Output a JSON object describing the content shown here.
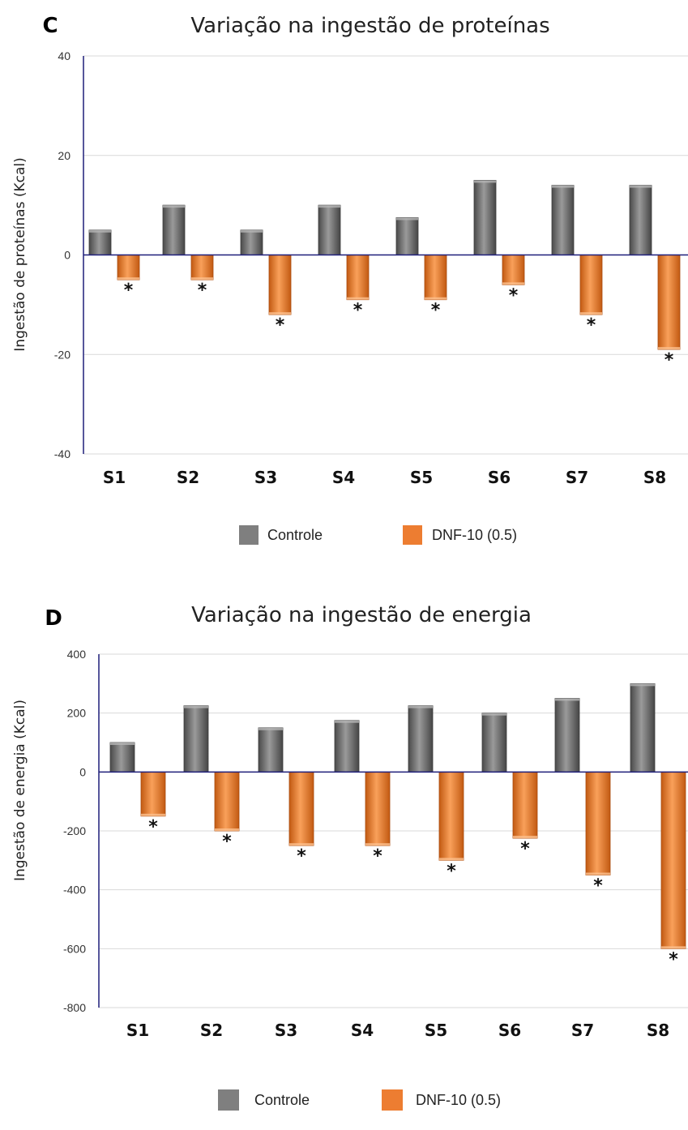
{
  "chart_data": [
    {
      "panel": "C",
      "type": "bar",
      "title": "Variação na ingestão de proteínas",
      "ylabel": "Ingestão de proteínas (Kcal)",
      "xlabel": "",
      "categories": [
        "S1",
        "S2",
        "S3",
        "S4",
        "S5",
        "S6",
        "S7",
        "S8"
      ],
      "ylim": [
        -40,
        40
      ],
      "yticks": [
        -40,
        -20,
        0,
        20,
        40
      ],
      "grid": true,
      "legend_position": "bottom",
      "series": [
        {
          "name": "Controle",
          "color": "#7f7f7f",
          "values": [
            5,
            10,
            5,
            10,
            7.5,
            15,
            14,
            14
          ]
        },
        {
          "name": "DNF-10 (0.5)",
          "color": "#ed7d31",
          "values": [
            -5,
            -5,
            -12,
            -9,
            -9,
            -6,
            -12,
            -19
          ]
        }
      ],
      "annotations": [
        "*",
        "*",
        "*",
        "*",
        "*",
        "*",
        "*",
        "*"
      ]
    },
    {
      "panel": "D",
      "type": "bar",
      "title": "Variação na ingestão de energia",
      "ylabel": "Ingestão de energia (Kcal)",
      "xlabel": "",
      "categories": [
        "S1",
        "S2",
        "S3",
        "S4",
        "S5",
        "S6",
        "S7",
        "S8"
      ],
      "ylim": [
        -800,
        400
      ],
      "yticks": [
        -800,
        -600,
        -400,
        -200,
        0,
        200,
        400
      ],
      "grid": true,
      "legend_position": "bottom",
      "series": [
        {
          "name": "Controle",
          "color": "#7f7f7f",
          "values": [
            100,
            225,
            150,
            175,
            225,
            200,
            250,
            300
          ]
        },
        {
          "name": "DNF-10 (0.5)",
          "color": "#ed7d31",
          "values": [
            -150,
            -200,
            -250,
            -250,
            -300,
            -225,
            -350,
            -600
          ]
        }
      ],
      "annotations": [
        "*",
        "*",
        "*",
        "*",
        "*",
        "*",
        "*",
        "*"
      ]
    }
  ]
}
